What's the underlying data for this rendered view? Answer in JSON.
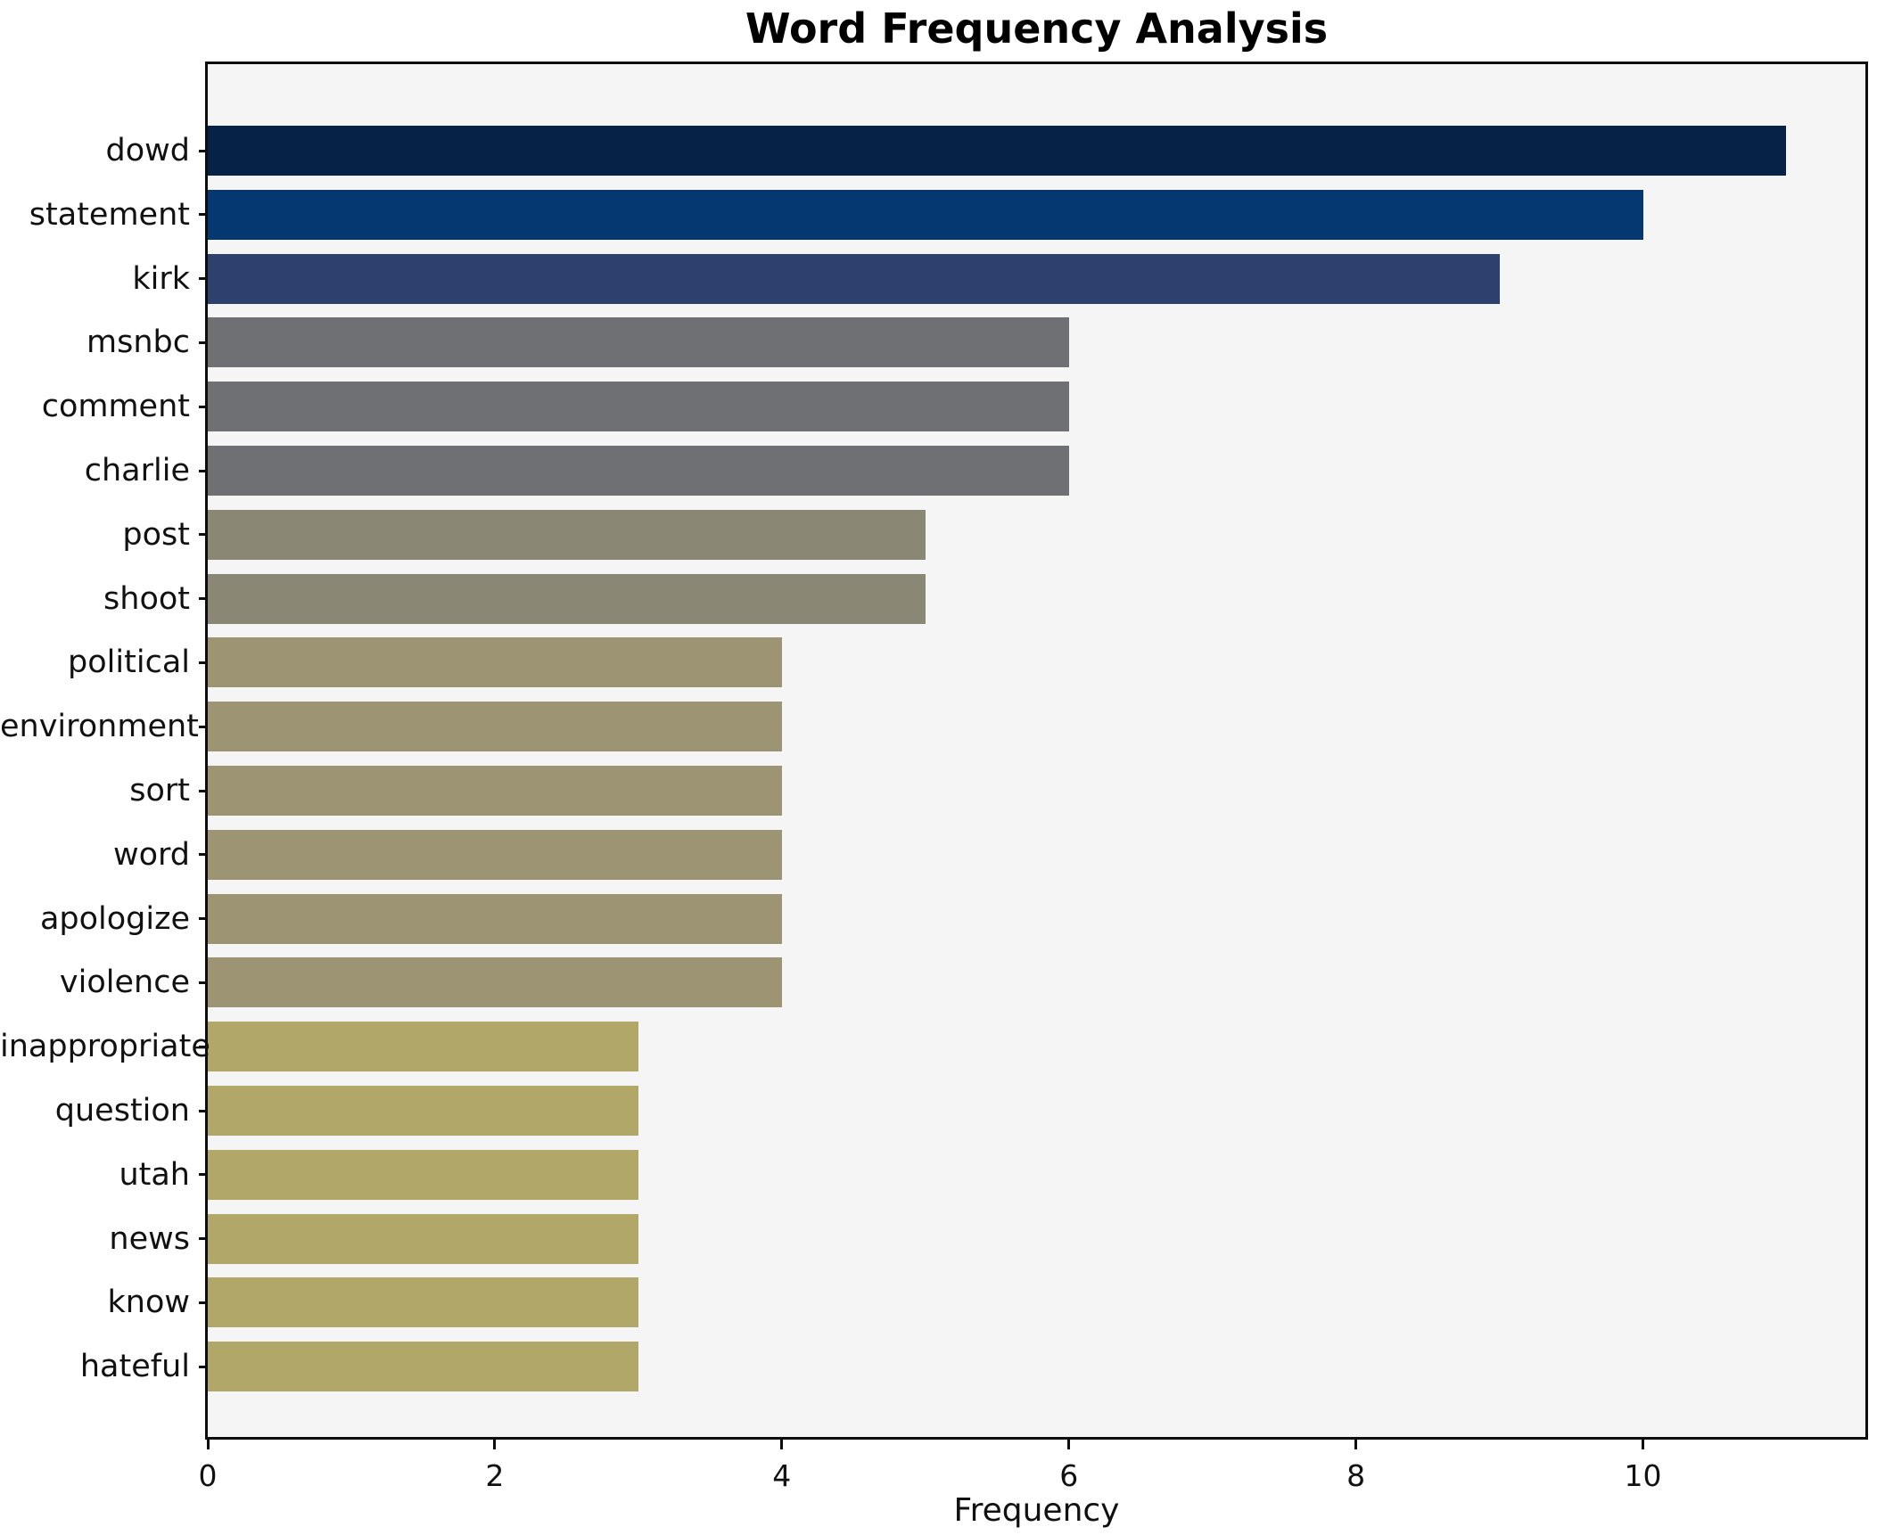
{
  "chart_data": {
    "type": "bar",
    "orientation": "horizontal",
    "title": "Word Frequency Analysis",
    "xlabel": "Frequency",
    "ylabel": "",
    "categories": [
      "dowd",
      "statement",
      "kirk",
      "msnbc",
      "comment",
      "charlie",
      "post",
      "shoot",
      "political",
      "environment",
      "sort",
      "word",
      "apologize",
      "violence",
      "inappropriate",
      "question",
      "utah",
      "news",
      "know",
      "hateful"
    ],
    "values": [
      11,
      10,
      9,
      6,
      6,
      6,
      5,
      5,
      4,
      4,
      4,
      4,
      4,
      4,
      3,
      3,
      3,
      3,
      3,
      3
    ],
    "bar_colors": [
      "#062247",
      "#053770",
      "#2e416e",
      "#6f7073",
      "#6f7073",
      "#6f7073",
      "#8a8774",
      "#8a8774",
      "#9c9472",
      "#9c9472",
      "#9c9472",
      "#9c9472",
      "#9c9472",
      "#9c9472",
      "#b1a768",
      "#b1a768",
      "#b1a768",
      "#b1a768",
      "#b1a768",
      "#b1a768"
    ],
    "xticks": [
      0,
      2,
      4,
      6,
      8,
      10
    ],
    "xlim": [
      0,
      11.55
    ],
    "grid": false,
    "legend_position": "none",
    "plot_background": "#f5f5f6",
    "figure_background": "#ffffff",
    "spine_color": "#0d0d0d",
    "text_color": "#111111"
  }
}
